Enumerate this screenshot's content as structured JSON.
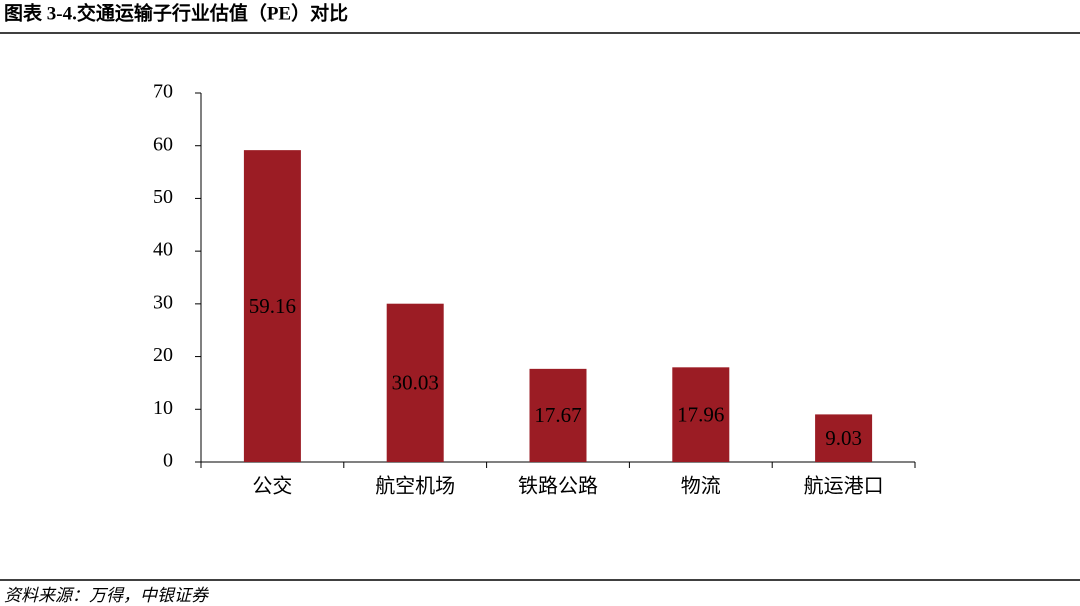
{
  "chart_data": {
    "type": "bar",
    "title": "图表 3-4.交通运输子行业估值（PE）对比",
    "source": "资料来源：万得，中银证券",
    "categories": [
      "公交",
      "航空机场",
      "铁路公路",
      "物流",
      "航运港口"
    ],
    "values": [
      59.16,
      30.03,
      17.67,
      17.96,
      9.03
    ],
    "color": "#9b1c24",
    "ylim": [
      0,
      70
    ],
    "yticks": [
      0,
      10,
      20,
      30,
      40,
      50,
      60,
      70
    ],
    "grid": false
  }
}
